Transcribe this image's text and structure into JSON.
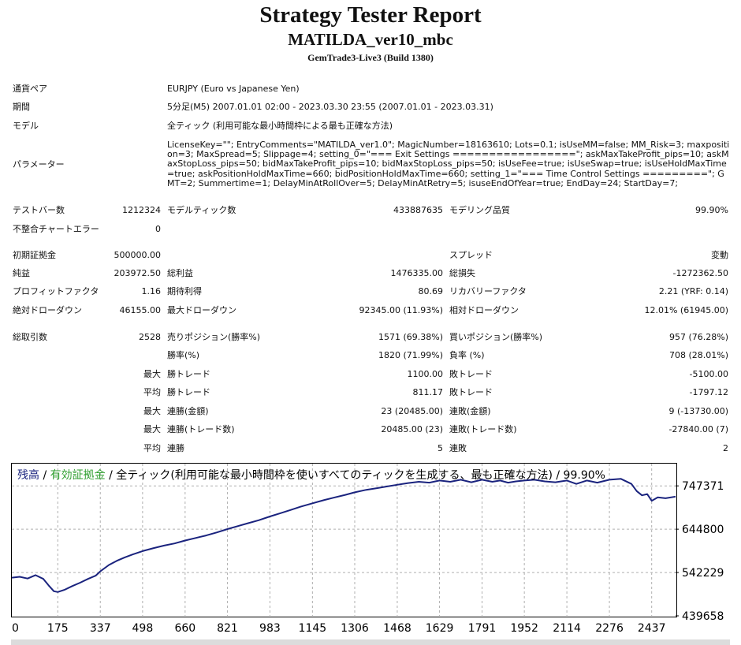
{
  "header": {
    "title": "Strategy Tester Report",
    "subtitle": "MATILDA_ver10_mbc",
    "server": "GemTrade3-Live3 (Build 1380)"
  },
  "info": {
    "pair_label": "通貨ペア",
    "pair_value": "EURJPY (Euro vs Japanese Yen)",
    "period_label": "期間",
    "period_value": "5分足(M5) 2007.01.01 02:00 - 2023.03.30 23:55 (2007.01.01 - 2023.03.31)",
    "model_label": "モデル",
    "model_value": "全ティック (利用可能な最小時間枠による最も正確な方法)",
    "params_label": "パラメーター",
    "params_value": "LicenseKey=\"\"; EntryComments=\"MATILDA_ver1.0\"; MagicNumber=18163610; Lots=0.1; isUseMM=false; MM_Risk=3; maxposition=3; MaxSpread=5; Slippage=4; setting_0=\"=== Exit Settings =================\"; askMaxTakeProfit_pips=10; askMaxStopLoss_pips=50; bidMaxTakeProfit_pips=10; bidMaxStopLoss_pips=50; isUseFee=true; isUseSwap=true; isUseHoldMaxTime=true; askPositionHoldMaxTime=660; bidPositionHoldMaxTime=660; setting_1=\"=== Time Control Settings =========\"; GMT=2; Summertime=1; DelayMinAtRollOver=5; DelayMinAtRetry=5; isuseEndOfYear=true; EndDay=24; StartDay=7;"
  },
  "stats": {
    "bars_label": "テストバー数",
    "bars_value": "1212324",
    "ticks_label": "モデルティック数",
    "ticks_value": "433887635",
    "quality_label": "モデリング品質",
    "quality_value": "99.90%",
    "mismatch_label": "不整合チャートエラー",
    "mismatch_value": "0",
    "deposit_label": "初期証拠金",
    "deposit_value": "500000.00",
    "spread_label": "スプレッド",
    "spread_value": "変動",
    "net_label": "純益",
    "net_value": "203972.50",
    "gross_profit_label": "総利益",
    "gross_profit_value": "1476335.00",
    "gross_loss_label": "総損失",
    "gross_loss_value": "-1272362.50",
    "pf_label": "プロフィットファクタ",
    "pf_value": "1.16",
    "expected_label": "期待利得",
    "expected_value": "80.69",
    "recovery_label": "リカバリーファクタ",
    "recovery_value": "2.21 (YRF: 0.14)",
    "abs_dd_label": "絶対ドローダウン",
    "abs_dd_value": "46155.00",
    "max_dd_label": "最大ドローダウン",
    "max_dd_value": "92345.00 (11.93%)",
    "rel_dd_label": "相対ドローダウン",
    "rel_dd_value": "12.01% (61945.00)",
    "total_trades_label": "総取引数",
    "total_trades_value": "2528",
    "short_label": "売りポジション(勝率%)",
    "short_value": "1571 (69.38%)",
    "long_label": "買いポジション(勝率%)",
    "long_value": "957 (76.28%)",
    "win_rate_label": "勝率(%)",
    "win_rate_value": "1820 (71.99%)",
    "loss_rate_label": "負率 (%)",
    "loss_rate_value": "708 (28.01%)",
    "max_label": "最大",
    "avg_label": "平均",
    "largest_win_label": "勝トレード",
    "largest_win_value": "1100.00",
    "largest_loss_label": "敗トレード",
    "largest_loss_value": "-5100.00",
    "avg_win_label": "勝トレード",
    "avg_win_value": "811.17",
    "avg_loss_label": "敗トレード",
    "avg_loss_value": "-1797.12",
    "max_consec_win_amt_label": "連勝(金額)",
    "max_consec_win_amt_value": "23 (20485.00)",
    "max_consec_loss_amt_label": "連敗(金額)",
    "max_consec_loss_amt_value": "9 (-13730.00)",
    "max_consec_win_cnt_label": "連勝(トレード数)",
    "max_consec_win_cnt_value": "20485.00 (23)",
    "max_consec_loss_cnt_label": "連敗(トレード数)",
    "max_consec_loss_cnt_value": "-27840.00 (7)",
    "avg_consec_win_label": "連勝",
    "avg_consec_win_value": "5",
    "avg_consec_loss_label": "連敗",
    "avg_consec_loss_value": "2"
  },
  "chart_data": {
    "type": "line",
    "legend": {
      "balance": "残高",
      "sep1": " / ",
      "equity": "有効証拠金",
      "rest": " / 全ティック(利用可能な最小時間枠を使いすべてのティックを生成する、最も正確な方法) / 99.90%"
    },
    "colors": {
      "line": "#1a237e",
      "equity": "#2e9e2e",
      "grid": "#b0b0b0"
    },
    "y_ticks": [
      "747371",
      "644800",
      "542229",
      "439658"
    ],
    "x_ticks": [
      "0",
      "175",
      "337",
      "498",
      "660",
      "821",
      "983",
      "1145",
      "1306",
      "1468",
      "1629",
      "1791",
      "1952",
      "2114",
      "2276",
      "2437"
    ],
    "xlim": [
      0,
      2528
    ],
    "ylim": [
      439658,
      800000
    ],
    "series": [
      {
        "x": [
          0,
          30,
          60,
          90,
          120,
          140,
          160,
          175,
          200,
          230,
          260,
          290,
          320,
          337,
          370,
          400,
          430,
          460,
          498,
          540,
          580,
          620,
          660,
          700,
          740,
          780,
          821,
          860,
          900,
          940,
          983,
          1020,
          1060,
          1100,
          1145,
          1190,
          1230,
          1270,
          1306,
          1350,
          1390,
          1430,
          1468,
          1510,
          1550,
          1590,
          1629,
          1670,
          1710,
          1750,
          1791,
          1830,
          1860,
          1890,
          1920,
          1952,
          1990,
          2030,
          2070,
          2114,
          2150,
          2190,
          2230,
          2276,
          2320,
          2360,
          2380,
          2400,
          2420,
          2437,
          2460,
          2490,
          2528
        ],
        "y": [
          530000,
          532000,
          528000,
          536000,
          527000,
          512000,
          498000,
          496000,
          501000,
          510000,
          518000,
          527000,
          535000,
          545000,
          560000,
          570000,
          578000,
          585000,
          593000,
          600000,
          606000,
          611000,
          618000,
          624000,
          630000,
          637000,
          645000,
          652000,
          659000,
          666000,
          675000,
          682000,
          690000,
          698000,
          706000,
          714000,
          720000,
          726000,
          732000,
          738000,
          742000,
          746000,
          750000,
          754000,
          757000,
          755000,
          760000,
          757000,
          762000,
          756000,
          762000,
          757000,
          760000,
          755000,
          758000,
          760000,
          762000,
          758000,
          756000,
          760000,
          752000,
          760000,
          755000,
          762000,
          764000,
          752000,
          735000,
          725000,
          728000,
          712000,
          720000,
          718000,
          722000
        ]
      }
    ]
  }
}
